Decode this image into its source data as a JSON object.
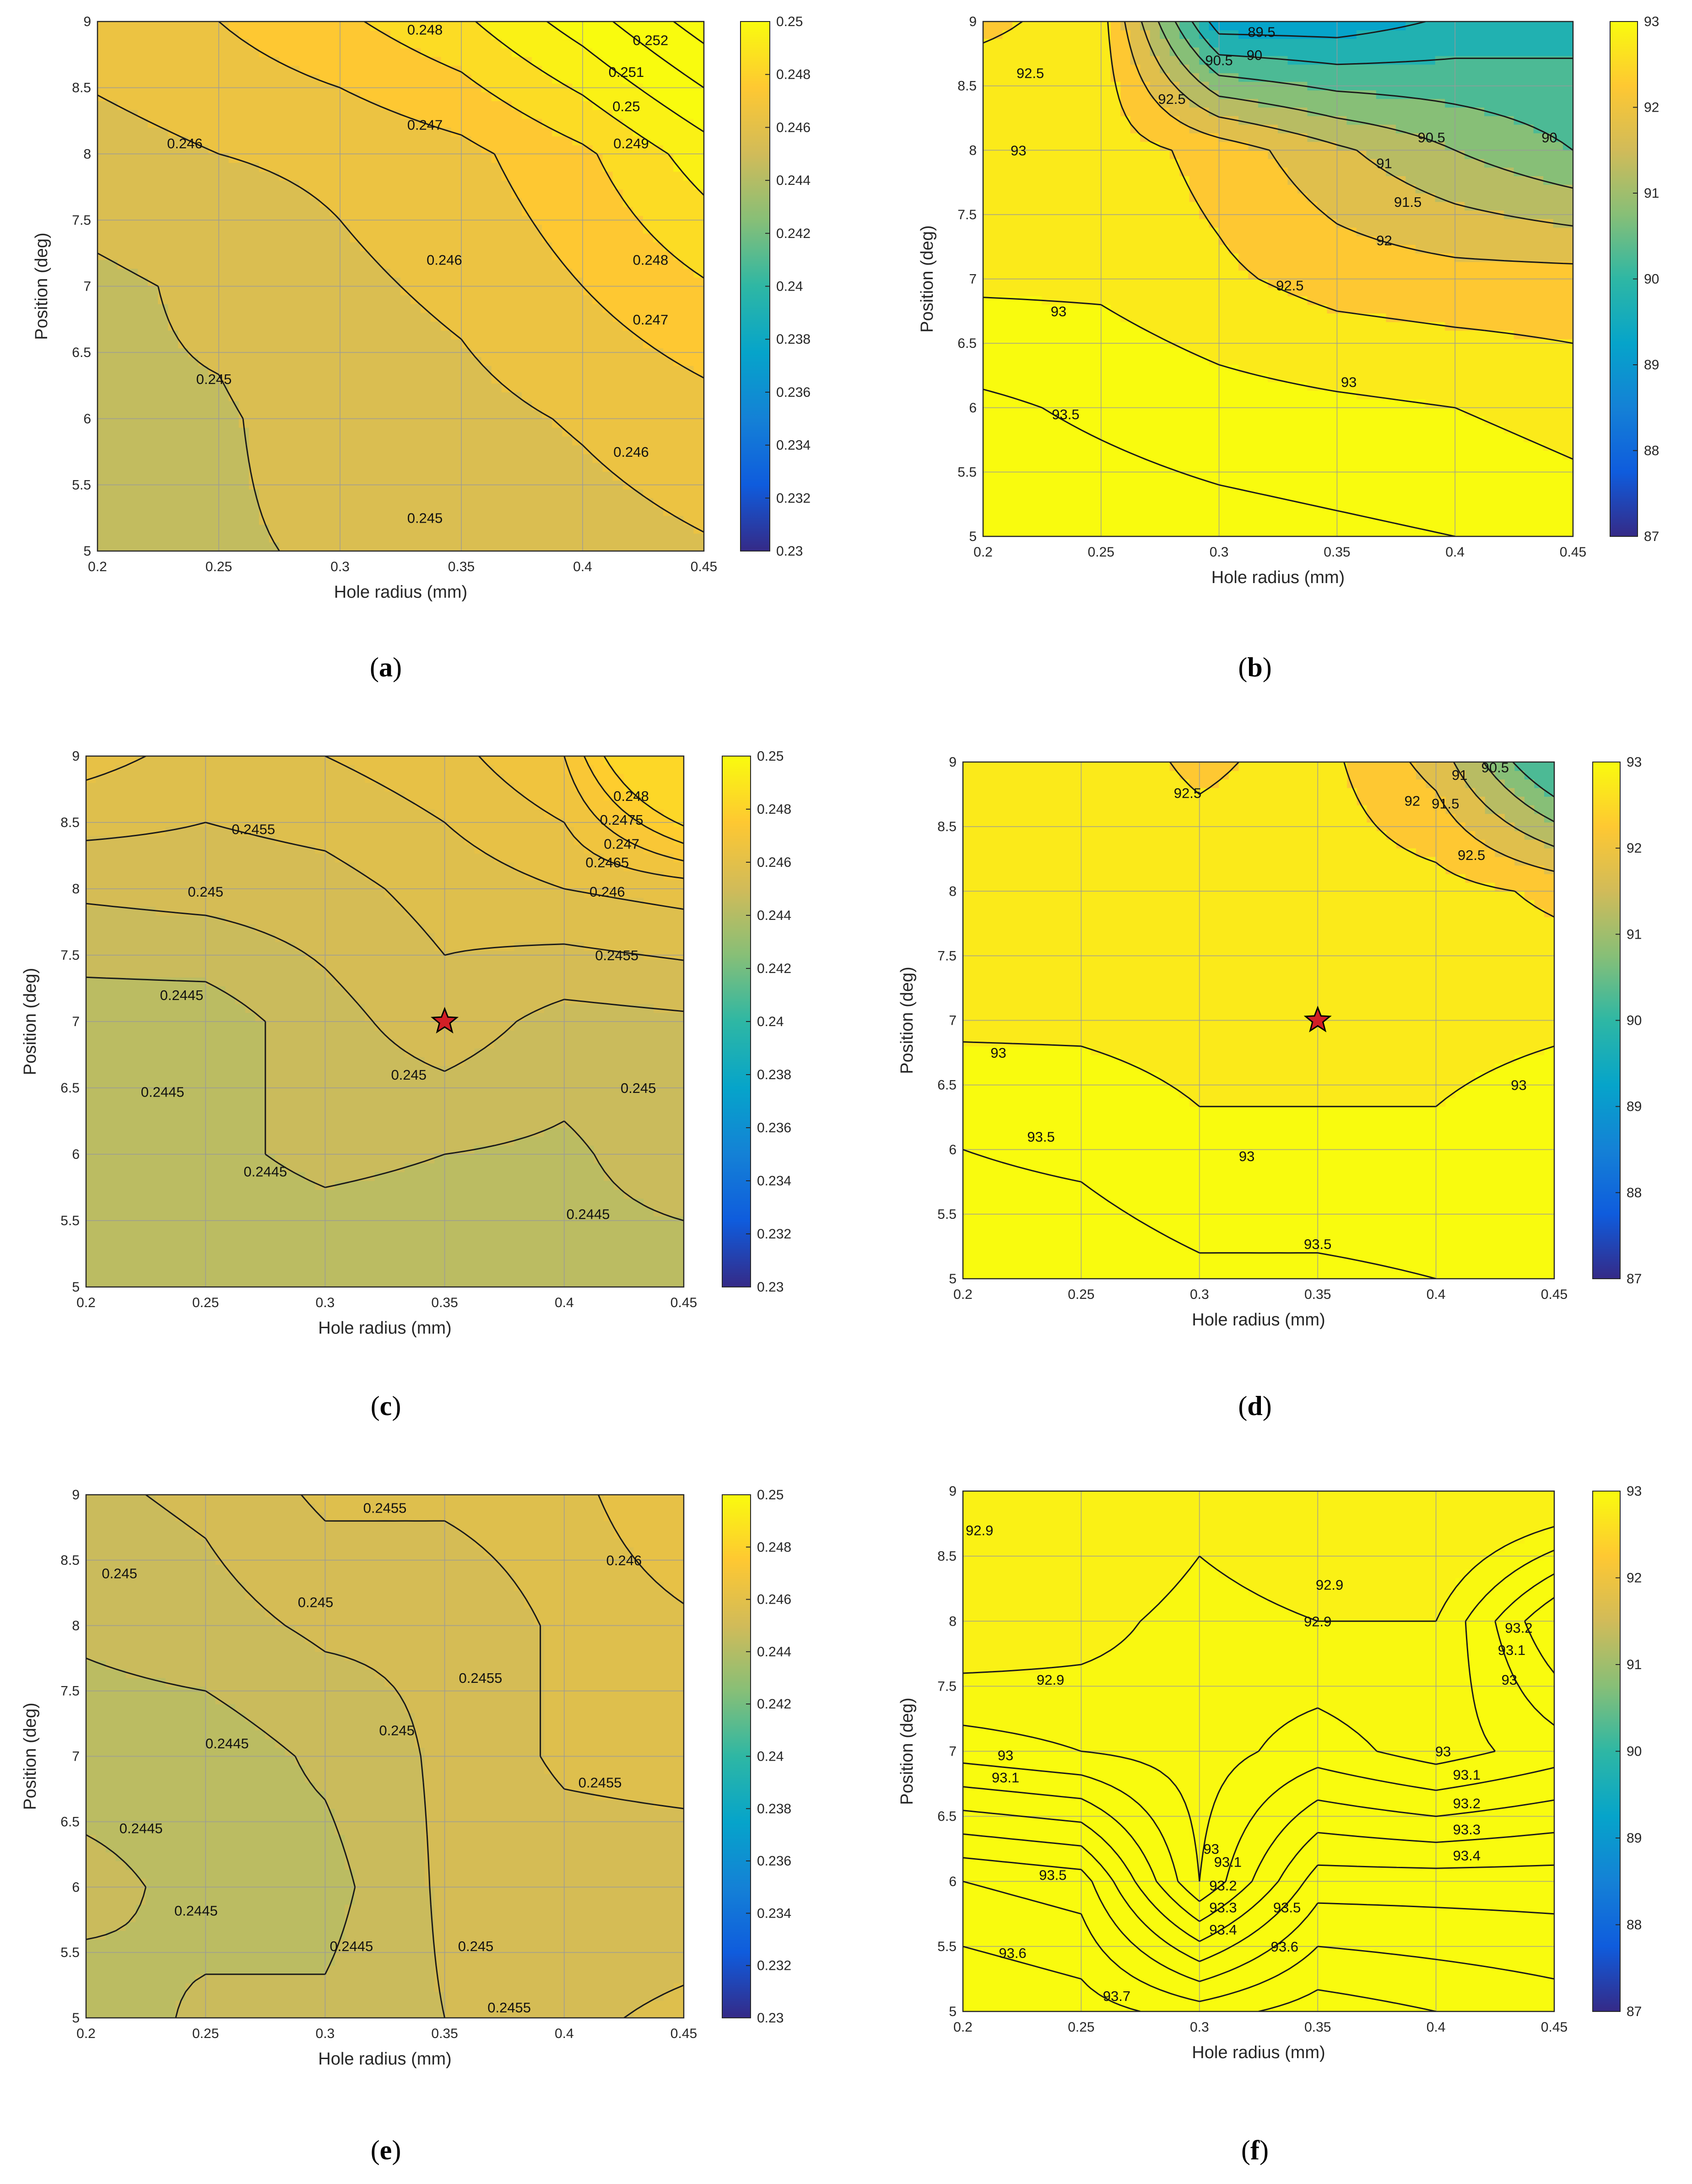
{
  "figure": {
    "panel_labels": [
      "(a)",
      "(b)",
      "(c)",
      "(d)",
      "(e)",
      "(f)"
    ],
    "label_letters": [
      "a",
      "b",
      "c",
      "d",
      "e",
      "f"
    ]
  },
  "colors": {
    "colormap": "parula",
    "contour_line": "#1a1a1a",
    "grid": "#9a9a9a",
    "star_fill": "#d21f26"
  },
  "chart_data": [
    {
      "id": "a",
      "type": "contour",
      "xlabel": "Hole radius (mm)",
      "ylabel": "Position (deg)",
      "xlim": [
        0.2,
        0.45
      ],
      "ylim": [
        5,
        9
      ],
      "xticks": [
        "0.2",
        "0.25",
        "0.3",
        "0.35",
        "0.4",
        "0.45"
      ],
      "yticks": [
        "5",
        "5.5",
        "6",
        "6.5",
        "7",
        "7.5",
        "8",
        "8.5",
        "9"
      ],
      "clim": [
        0.23,
        0.25
      ],
      "colorbar_ticks": [
        "0.23",
        "0.232",
        "0.234",
        "0.236",
        "0.238",
        "0.24",
        "0.242",
        "0.244",
        "0.246",
        "0.248",
        "0.25"
      ],
      "x": [
        0.2,
        0.25,
        0.3,
        0.35,
        0.4,
        0.45
      ],
      "y": [
        5,
        6,
        7,
        8,
        9
      ],
      "z": [
        [
          0.2448,
          0.2449,
          0.2451,
          0.2453,
          0.2456,
          0.2459
        ],
        [
          0.2449,
          0.2449,
          0.2454,
          0.2457,
          0.2461,
          0.2466
        ],
        [
          0.2448,
          0.2452,
          0.2458,
          0.2462,
          0.247,
          0.2479
        ],
        [
          0.2456,
          0.246,
          0.2462,
          0.2467,
          0.2478,
          0.2495
        ],
        [
          0.2465,
          0.247,
          0.2478,
          0.2488,
          0.2505,
          0.2525
        ]
      ],
      "levels": [
        0.245,
        0.246,
        0.247,
        0.248,
        0.249,
        0.25,
        0.251,
        0.252
      ],
      "contour_labels": [
        {
          "text": "0.248",
          "x": 0.335,
          "y": 8.94
        },
        {
          "text": "0.252",
          "x": 0.428,
          "y": 8.86
        },
        {
          "text": "0.251",
          "x": 0.418,
          "y": 8.62
        },
        {
          "text": "0.25",
          "x": 0.418,
          "y": 8.36
        },
        {
          "text": "0.249",
          "x": 0.42,
          "y": 8.08
        },
        {
          "text": "0.247",
          "x": 0.335,
          "y": 8.22
        },
        {
          "text": "0.246",
          "x": 0.236,
          "y": 8.08
        },
        {
          "text": "0.248",
          "x": 0.428,
          "y": 7.2
        },
        {
          "text": "0.246",
          "x": 0.343,
          "y": 7.2
        },
        {
          "text": "0.247",
          "x": 0.428,
          "y": 6.75
        },
        {
          "text": "0.245",
          "x": 0.248,
          "y": 6.3
        },
        {
          "text": "0.246",
          "x": 0.42,
          "y": 5.75
        },
        {
          "text": "0.245",
          "x": 0.335,
          "y": 5.25
        }
      ]
    },
    {
      "id": "b",
      "type": "contour",
      "xlabel": "Hole radius (mm)",
      "ylabel": "Position (deg)",
      "xlim": [
        0.2,
        0.45
      ],
      "ylim": [
        5,
        9
      ],
      "xticks": [
        "0.2",
        "0.25",
        "0.3",
        "0.35",
        "0.4",
        "0.45"
      ],
      "yticks": [
        "5",
        "5.5",
        "6",
        "6.5",
        "7",
        "7.5",
        "8",
        "8.5",
        "9"
      ],
      "clim": [
        87,
        93
      ],
      "colorbar_ticks": [
        "87",
        "88",
        "89",
        "90",
        "91",
        "92",
        "93"
      ],
      "x": [
        0.2,
        0.25,
        0.3,
        0.35,
        0.4,
        0.45
      ],
      "y": [
        5,
        6,
        7,
        8,
        9
      ],
      "z": [
        [
          93.9,
          93.8,
          93.7,
          93.6,
          93.5,
          93.3
        ],
        [
          93.6,
          93.4,
          93.2,
          93.1,
          93.0,
          92.8
        ],
        [
          92.9,
          92.9,
          92.6,
          92.3,
          92.2,
          92.2
        ],
        [
          93.0,
          92.8,
          92.3,
          91.6,
          91.0,
          90.5
        ],
        [
          92.4,
          92.7,
          89.2,
          89.2,
          89.6,
          89.8
        ]
      ],
      "levels": [
        89.5,
        90,
        90.5,
        91,
        91.5,
        92,
        92.5,
        93,
        93.5
      ],
      "contour_labels": [
        {
          "text": "89.5",
          "x": 0.318,
          "y": 8.92
        },
        {
          "text": "90",
          "x": 0.315,
          "y": 8.74
        },
        {
          "text": "90.5",
          "x": 0.3,
          "y": 8.7
        },
        {
          "text": "92.5",
          "x": 0.22,
          "y": 8.6
        },
        {
          "text": "92.5",
          "x": 0.28,
          "y": 8.4
        },
        {
          "text": "90.5",
          "x": 0.39,
          "y": 8.1
        },
        {
          "text": "90",
          "x": 0.44,
          "y": 8.1
        },
        {
          "text": "91",
          "x": 0.37,
          "y": 7.9
        },
        {
          "text": "93",
          "x": 0.215,
          "y": 8.0
        },
        {
          "text": "91.5",
          "x": 0.38,
          "y": 7.6
        },
        {
          "text": "92",
          "x": 0.37,
          "y": 7.3
        },
        {
          "text": "92.5",
          "x": 0.33,
          "y": 6.95
        },
        {
          "text": "93",
          "x": 0.232,
          "y": 6.75
        },
        {
          "text": "93",
          "x": 0.355,
          "y": 6.2
        },
        {
          "text": "93.5",
          "x": 0.235,
          "y": 5.95
        }
      ]
    },
    {
      "id": "c",
      "type": "contour",
      "xlabel": "Hole radius (mm)",
      "ylabel": "Position (deg)",
      "xlim": [
        0.2,
        0.45
      ],
      "ylim": [
        5,
        9
      ],
      "xticks": [
        "0.2",
        "0.25",
        "0.3",
        "0.35",
        "0.4",
        "0.45"
      ],
      "yticks": [
        "5",
        "5.5",
        "6",
        "6.5",
        "7",
        "7.5",
        "8",
        "8.5",
        "9"
      ],
      "clim": [
        0.23,
        0.25
      ],
      "colorbar_ticks": [
        "0.23",
        "0.232",
        "0.234",
        "0.236",
        "0.238",
        "0.24",
        "0.242",
        "0.244",
        "0.246",
        "0.248",
        "0.25"
      ],
      "x": [
        0.2,
        0.25,
        0.3,
        0.35,
        0.4,
        0.45
      ],
      "y": [
        5,
        6,
        7,
        8,
        9
      ],
      "z": [
        [
          0.2443,
          0.2442,
          0.2442,
          0.2442,
          0.2443,
          0.2442
        ],
        [
          0.2445,
          0.2444,
          0.2446,
          0.2445,
          0.2444,
          0.2448
        ],
        [
          0.2442,
          0.2442,
          0.2448,
          0.2453,
          0.2448,
          0.2449
        ],
        [
          0.2451,
          0.2452,
          0.2453,
          0.2457,
          0.246,
          0.2462
        ],
        [
          0.2462,
          0.2458,
          0.246,
          0.2463,
          0.247,
          0.25
        ]
      ],
      "levels": [
        0.2445,
        0.245,
        0.2455,
        0.246,
        0.2465,
        0.247,
        0.2475,
        0.248
      ],
      "marker": {
        "x": 0.35,
        "y": 7.0
      },
      "contour_labels": [
        {
          "text": "0.248",
          "x": 0.428,
          "y": 8.7
        },
        {
          "text": "0.2475",
          "x": 0.424,
          "y": 8.52
        },
        {
          "text": "0.247",
          "x": 0.424,
          "y": 8.34
        },
        {
          "text": "0.2455",
          "x": 0.27,
          "y": 8.45
        },
        {
          "text": "0.2465",
          "x": 0.418,
          "y": 8.2
        },
        {
          "text": "0.246",
          "x": 0.418,
          "y": 7.98
        },
        {
          "text": "0.245",
          "x": 0.25,
          "y": 7.98
        },
        {
          "text": "0.2455",
          "x": 0.422,
          "y": 7.5
        },
        {
          "text": "0.2445",
          "x": 0.24,
          "y": 7.2
        },
        {
          "text": "0.245",
          "x": 0.335,
          "y": 6.6
        },
        {
          "text": "0.245",
          "x": 0.431,
          "y": 6.5
        },
        {
          "text": "0.2445",
          "x": 0.232,
          "y": 6.47
        },
        {
          "text": "0.2445",
          "x": 0.275,
          "y": 5.87
        },
        {
          "text": "0.2445",
          "x": 0.41,
          "y": 5.55
        }
      ]
    },
    {
      "id": "d",
      "type": "contour",
      "xlabel": "Hole radius (mm)",
      "ylabel": "Position (deg)",
      "xlim": [
        0.2,
        0.45
      ],
      "ylim": [
        5,
        9
      ],
      "xticks": [
        "0.2",
        "0.25",
        "0.3",
        "0.35",
        "0.4",
        "0.45"
      ],
      "yticks": [
        "5",
        "5.5",
        "6",
        "6.5",
        "7",
        "7.5",
        "8",
        "8.5",
        "9"
      ],
      "clim": [
        87,
        93
      ],
      "colorbar_ticks": [
        "87",
        "88",
        "89",
        "90",
        "91",
        "92",
        "93"
      ],
      "x": [
        0.2,
        0.25,
        0.3,
        0.35,
        0.4,
        0.45
      ],
      "y": [
        5,
        6,
        7,
        8,
        9
      ],
      "z": [
        [
          93.8,
          93.8,
          93.6,
          93.6,
          93.5,
          93.3
        ],
        [
          93.5,
          93.4,
          93.1,
          93.1,
          93.1,
          93.4
        ],
        [
          92.9,
          92.9,
          92.8,
          92.8,
          92.8,
          92.9
        ],
        [
          92.8,
          92.8,
          92.8,
          92.8,
          92.7,
          92.4
        ],
        [
          92.8,
          92.8,
          92.4,
          92.7,
          91.8,
          89.8
        ]
      ],
      "levels": [
        90.5,
        91,
        91.5,
        92,
        92.5,
        93,
        93.5
      ],
      "marker": {
        "x": 0.35,
        "y": 7.0
      },
      "contour_labels": [
        {
          "text": "90.5",
          "x": 0.425,
          "y": 8.96
        },
        {
          "text": "91",
          "x": 0.41,
          "y": 8.9
        },
        {
          "text": "91.5",
          "x": 0.404,
          "y": 8.68
        },
        {
          "text": "92.5",
          "x": 0.295,
          "y": 8.76
        },
        {
          "text": "92",
          "x": 0.39,
          "y": 8.7
        },
        {
          "text": "92.5",
          "x": 0.415,
          "y": 8.28
        },
        {
          "text": "93",
          "x": 0.215,
          "y": 6.75
        },
        {
          "text": "93",
          "x": 0.435,
          "y": 6.5
        },
        {
          "text": "93.5",
          "x": 0.233,
          "y": 6.1
        },
        {
          "text": "93",
          "x": 0.32,
          "y": 5.95
        },
        {
          "text": "93.5",
          "x": 0.35,
          "y": 5.27
        }
      ]
    },
    {
      "id": "e",
      "type": "contour",
      "xlabel": "Hole radius (mm)",
      "ylabel": "Position (deg)",
      "xlim": [
        0.2,
        0.45
      ],
      "ylim": [
        5,
        9
      ],
      "xticks": [
        "0.2",
        "0.25",
        "0.3",
        "0.35",
        "0.4",
        "0.45"
      ],
      "yticks": [
        "5",
        "5.5",
        "6",
        "6.5",
        "7",
        "7.5",
        "8",
        "8.5",
        "9"
      ],
      "clim": [
        0.23,
        0.25
      ],
      "colorbar_ticks": [
        "0.23",
        "0.232",
        "0.234",
        "0.236",
        "0.238",
        "0.24",
        "0.242",
        "0.244",
        "0.246",
        "0.248",
        "0.25"
      ],
      "x": [
        0.2,
        0.25,
        0.3,
        0.35,
        0.4,
        0.45
      ],
      "y": [
        5,
        6,
        7,
        8,
        9
      ],
      "z": [
        [
          0.2442,
          0.2446,
          0.2446,
          0.245,
          0.2454,
          0.2456
        ],
        [
          0.2447,
          0.2443,
          0.2443,
          0.2451,
          0.2452,
          0.2452
        ],
        [
          0.2442,
          0.2442,
          0.2446,
          0.2451,
          0.2456,
          0.2457
        ],
        [
          0.2446,
          0.2448,
          0.2451,
          0.2451,
          0.2456,
          0.2459
        ],
        [
          0.2449,
          0.2451,
          0.2456,
          0.2456,
          0.2458,
          0.2465
        ]
      ],
      "levels": [
        0.2445,
        0.245,
        0.2455,
        0.246
      ],
      "contour_labels": [
        {
          "text": "0.2455",
          "x": 0.325,
          "y": 8.9
        },
        {
          "text": "0.245",
          "x": 0.214,
          "y": 8.4
        },
        {
          "text": "0.246",
          "x": 0.425,
          "y": 8.5
        },
        {
          "text": "0.245",
          "x": 0.296,
          "y": 8.18
        },
        {
          "text": "0.2455",
          "x": 0.365,
          "y": 7.6
        },
        {
          "text": "0.2445",
          "x": 0.259,
          "y": 7.1
        },
        {
          "text": "0.245",
          "x": 0.33,
          "y": 7.2
        },
        {
          "text": "0.2455",
          "x": 0.415,
          "y": 6.8
        },
        {
          "text": "0.2445",
          "x": 0.223,
          "y": 6.45
        },
        {
          "text": "0.2445",
          "x": 0.246,
          "y": 5.82
        },
        {
          "text": "0.2445",
          "x": 0.311,
          "y": 5.55
        },
        {
          "text": "0.245",
          "x": 0.363,
          "y": 5.55
        },
        {
          "text": "0.2455",
          "x": 0.377,
          "y": 5.08
        }
      ]
    },
    {
      "id": "f",
      "type": "contour",
      "xlabel": "Hole radius (mm)",
      "ylabel": "Position (deg)",
      "xlim": [
        0.2,
        0.45
      ],
      "ylim": [
        5,
        9
      ],
      "xticks": [
        "0.2",
        "0.25",
        "0.3",
        "0.35",
        "0.4",
        "0.45"
      ],
      "yticks": [
        "5",
        "5.5",
        "6",
        "6.5",
        "7",
        "7.5",
        "8",
        "8.5",
        "9"
      ],
      "clim": [
        87,
        93
      ],
      "colorbar_ticks": [
        "87",
        "88",
        "89",
        "90",
        "91",
        "92",
        "93"
      ],
      "x": [
        0.2,
        0.25,
        0.3,
        0.35,
        0.4,
        0.45
      ],
      "y": [
        5,
        6,
        7,
        8,
        9
      ],
      "z": [
        [
          93.8,
          93.75,
          93.65,
          93.75,
          93.7,
          93.65
        ],
        [
          93.6,
          93.55,
          93.0,
          93.45,
          93.45,
          93.45
        ],
        [
          93.05,
          93.0,
          92.95,
          93.05,
          92.95,
          93.05
        ],
        [
          92.8,
          92.85,
          92.95,
          92.9,
          92.9,
          93.3
        ],
        [
          92.7,
          92.7,
          92.85,
          92.75,
          92.7,
          92.75
        ]
      ],
      "levels": [
        92.9,
        93,
        93.1,
        93.2,
        93.3,
        93.4,
        93.5,
        93.6,
        93.7
      ],
      "contour_labels": [
        {
          "text": "92.9",
          "x": 0.207,
          "y": 8.7
        },
        {
          "text": "92.9",
          "x": 0.355,
          "y": 8.28
        },
        {
          "text": "92.9",
          "x": 0.35,
          "y": 8.0
        },
        {
          "text": "93.2",
          "x": 0.435,
          "y": 7.95
        },
        {
          "text": "93.1",
          "x": 0.432,
          "y": 7.78
        },
        {
          "text": "93",
          "x": 0.431,
          "y": 7.55
        },
        {
          "text": "92.9",
          "x": 0.237,
          "y": 7.55
        },
        {
          "text": "93",
          "x": 0.218,
          "y": 6.97
        },
        {
          "text": "93",
          "x": 0.403,
          "y": 7.0
        },
        {
          "text": "93.1",
          "x": 0.218,
          "y": 6.8
        },
        {
          "text": "93.1",
          "x": 0.413,
          "y": 6.82
        },
        {
          "text": "93.2",
          "x": 0.413,
          "y": 6.6
        },
        {
          "text": "93.3",
          "x": 0.413,
          "y": 6.4
        },
        {
          "text": "93.4",
          "x": 0.413,
          "y": 6.2
        },
        {
          "text": "93",
          "x": 0.305,
          "y": 6.25
        },
        {
          "text": "93.1",
          "x": 0.312,
          "y": 6.15
        },
        {
          "text": "93.2",
          "x": 0.31,
          "y": 5.97
        },
        {
          "text": "93.3",
          "x": 0.31,
          "y": 5.8
        },
        {
          "text": "93.4",
          "x": 0.31,
          "y": 5.63
        },
        {
          "text": "93.5",
          "x": 0.337,
          "y": 5.8
        },
        {
          "text": "93.5",
          "x": 0.238,
          "y": 6.05
        },
        {
          "text": "93.6",
          "x": 0.221,
          "y": 5.45
        },
        {
          "text": "93.6",
          "x": 0.336,
          "y": 5.5
        },
        {
          "text": "93.7",
          "x": 0.265,
          "y": 5.12
        }
      ]
    }
  ]
}
